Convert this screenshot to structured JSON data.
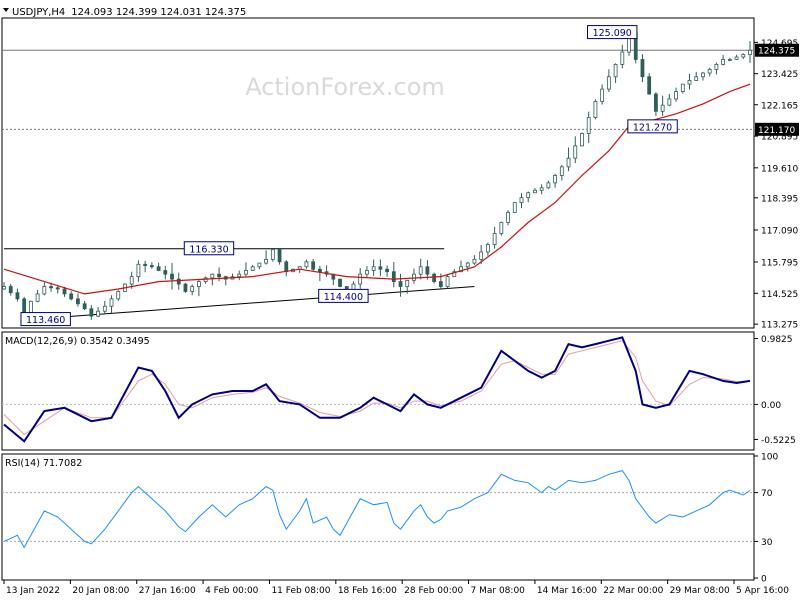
{
  "header": {
    "symbol": "USDJPY,H4",
    "ohlc": "124.093 124.399 124.031 124.375",
    "watermark": "ActionForex.com"
  },
  "colors": {
    "background": "#ffffff",
    "grid": "#c0c0c0",
    "frame": "#000000",
    "candle": "#2e5f5a",
    "ma": "#cc1111",
    "macd": "#000080",
    "signal": "#e0a0a0",
    "rsi": "#1e90ff",
    "watermark": "#d9d9d9",
    "label_border": "#000080"
  },
  "chart_data": [
    {
      "type": "candlestick",
      "name": "price",
      "ylim": [
        113.2,
        125.6
      ],
      "y_ticks": [
        "124.695",
        "123.425",
        "122.165",
        "120.895",
        "119.610",
        "118.395",
        "117.090",
        "115.795",
        "114.525",
        "113.275"
      ],
      "x_ticks": [
        "13 Jan 2022",
        "20 Jan 08:00",
        "27 Jan 16:00",
        "4 Feb 00:00",
        "11 Feb 08:00",
        "18 Feb 16:00",
        "28 Feb 00:00",
        "7 Mar 08:00",
        "14 Mar 16:00",
        "22 Mar 00:00",
        "29 Mar 08:00",
        "5 Apr 16:00"
      ],
      "close_path": [
        [
          0,
          114.8
        ],
        [
          2,
          114.3
        ],
        [
          3,
          113.7
        ],
        [
          4,
          114.2
        ],
        [
          6,
          114.8
        ],
        [
          8,
          114.7
        ],
        [
          10,
          114.3
        ],
        [
          12,
          113.9
        ],
        [
          13,
          113.6
        ],
        [
          15,
          114.0
        ],
        [
          17,
          114.6
        ],
        [
          19,
          115.2
        ],
        [
          20,
          115.7
        ],
        [
          22,
          115.6
        ],
        [
          24,
          115.3
        ],
        [
          26,
          114.9
        ],
        [
          27,
          114.6
        ],
        [
          29,
          115.0
        ],
        [
          31,
          115.3
        ],
        [
          33,
          115.1
        ],
        [
          35,
          115.3
        ],
        [
          37,
          115.6
        ],
        [
          39,
          115.9
        ],
        [
          40,
          116.3
        ],
        [
          41,
          115.8
        ],
        [
          42,
          115.4
        ],
        [
          44,
          115.6
        ],
        [
          45,
          115.8
        ],
        [
          46,
          115.5
        ],
        [
          48,
          115.3
        ],
        [
          49,
          115.1
        ],
        [
          50,
          114.8
        ],
        [
          51,
          114.6
        ],
        [
          52,
          114.9
        ],
        [
          53,
          115.3
        ],
        [
          55,
          115.6
        ],
        [
          57,
          115.4
        ],
        [
          58,
          115.0
        ],
        [
          59,
          114.8
        ],
        [
          61,
          115.3
        ],
        [
          62,
          115.6
        ],
        [
          63,
          115.3
        ],
        [
          64,
          115.0
        ],
        [
          65,
          114.8
        ],
        [
          66,
          115.2
        ],
        [
          68,
          115.6
        ],
        [
          70,
          115.9
        ],
        [
          72,
          116.5
        ],
        [
          74,
          117.4
        ],
        [
          76,
          118.2
        ],
        [
          78,
          118.6
        ],
        [
          80,
          118.8
        ],
        [
          81,
          119.0
        ],
        [
          82,
          119.3
        ],
        [
          84,
          120.0
        ],
        [
          86,
          121.0
        ],
        [
          88,
          122.3
        ],
        [
          90,
          123.3
        ],
        [
          92,
          124.3
        ],
        [
          93,
          125.09
        ],
        [
          94,
          124.0
        ],
        [
          96,
          122.6
        ],
        [
          97,
          121.9
        ],
        [
          99,
          122.4
        ],
        [
          101,
          123.0
        ],
        [
          103,
          123.3
        ],
        [
          105,
          123.6
        ],
        [
          107,
          124.0
        ],
        [
          108,
          124.0
        ],
        [
          110,
          124.2
        ],
        [
          111,
          124.375
        ]
      ],
      "series": [
        {
          "name": "MA",
          "values": [
            [
              0,
              115.5
            ],
            [
              6,
              115.0
            ],
            [
              12,
              114.5
            ],
            [
              17,
              114.7
            ],
            [
              23,
              115.0
            ],
            [
              30,
              115.1
            ],
            [
              37,
              115.2
            ],
            [
              44,
              115.5
            ],
            [
              51,
              115.2
            ],
            [
              58,
              115.1
            ],
            [
              65,
              115.2
            ],
            [
              70,
              115.6
            ],
            [
              74,
              116.4
            ],
            [
              78,
              117.4
            ],
            [
              82,
              118.2
            ],
            [
              86,
              119.3
            ],
            [
              90,
              120.3
            ],
            [
              93,
              121.3
            ],
            [
              96,
              121.5
            ],
            [
              100,
              121.8
            ],
            [
              104,
              122.2
            ],
            [
              108,
              122.7
            ],
            [
              111,
              123.0
            ]
          ]
        }
      ],
      "horizontal_lines": [
        {
          "value": 124.375,
          "label": "124.375",
          "style": "solid"
        },
        {
          "value": 121.17,
          "label": "121.170",
          "style": "dotted"
        }
      ],
      "annotations": [
        {
          "text": "125.090",
          "x": 90.5,
          "y": 125.09
        },
        {
          "text": "116.330",
          "x": 30.5,
          "y": 116.33
        },
        {
          "text": "114.400",
          "x": 50.5,
          "y": 114.4
        },
        {
          "text": "113.460",
          "x": 6.2,
          "y": 113.46
        },
        {
          "text": "121.270",
          "x": 96.5,
          "y": 121.27
        }
      ],
      "trendlines": [
        {
          "from": [
            0,
            116.33
          ],
          "to": [
            65.5,
            116.33
          ]
        },
        {
          "from": [
            5.5,
            113.5
          ],
          "to": [
            70,
            114.8
          ]
        }
      ]
    },
    {
      "type": "line",
      "name": "macd",
      "title": "MACD(12,26,9) 0.3542 0.3495",
      "ylim": [
        -0.65,
        1.05
      ],
      "y_ticks": [
        {
          "label": "0.9825",
          "value": 0.9825
        },
        {
          "label": "0.00",
          "value": 0.0
        },
        {
          "label": "-0.5225",
          "value": -0.5225
        }
      ],
      "series": [
        {
          "name": "MACD",
          "values": [
            [
              0,
              -0.3
            ],
            [
              3,
              -0.55
            ],
            [
              6,
              -0.1
            ],
            [
              9,
              -0.05
            ],
            [
              13,
              -0.25
            ],
            [
              16,
              -0.2
            ],
            [
              20,
              0.55
            ],
            [
              22,
              0.5
            ],
            [
              24,
              0.2
            ],
            [
              26,
              -0.2
            ],
            [
              28,
              0.0
            ],
            [
              31,
              0.15
            ],
            [
              34,
              0.2
            ],
            [
              37,
              0.2
            ],
            [
              39,
              0.3
            ],
            [
              41,
              0.05
            ],
            [
              44,
              0.0
            ],
            [
              47,
              -0.2
            ],
            [
              50,
              -0.2
            ],
            [
              53,
              -0.05
            ],
            [
              55,
              0.1
            ],
            [
              57,
              0.0
            ],
            [
              59,
              -0.1
            ],
            [
              61,
              0.15
            ],
            [
              63,
              0.0
            ],
            [
              65,
              -0.05
            ],
            [
              68,
              0.1
            ],
            [
              71,
              0.25
            ],
            [
              74,
              0.8
            ],
            [
              76,
              0.65
            ],
            [
              78,
              0.5
            ],
            [
              80,
              0.4
            ],
            [
              82,
              0.5
            ],
            [
              84,
              0.9
            ],
            [
              86,
              0.85
            ],
            [
              88,
              0.9
            ],
            [
              90,
              0.95
            ],
            [
              92,
              1.0
            ],
            [
              94,
              0.5
            ],
            [
              95,
              0.0
            ],
            [
              97,
              -0.05
            ],
            [
              99,
              0.0
            ],
            [
              102,
              0.5
            ],
            [
              104,
              0.45
            ],
            [
              107,
              0.35
            ],
            [
              109,
              0.32
            ],
            [
              111,
              0.35
            ]
          ]
        },
        {
          "name": "Signal",
          "values": [
            [
              0,
              -0.15
            ],
            [
              3,
              -0.45
            ],
            [
              6,
              -0.25
            ],
            [
              9,
              -0.05
            ],
            [
              13,
              -0.2
            ],
            [
              16,
              -0.2
            ],
            [
              20,
              0.35
            ],
            [
              22,
              0.45
            ],
            [
              24,
              0.3
            ],
            [
              26,
              0.0
            ],
            [
              28,
              -0.05
            ],
            [
              31,
              0.1
            ],
            [
              34,
              0.15
            ],
            [
              37,
              0.18
            ],
            [
              39,
              0.25
            ],
            [
              41,
              0.12
            ],
            [
              44,
              0.02
            ],
            [
              47,
              -0.12
            ],
            [
              50,
              -0.18
            ],
            [
              53,
              -0.1
            ],
            [
              55,
              0.02
            ],
            [
              57,
              0.02
            ],
            [
              59,
              -0.05
            ],
            [
              61,
              0.05
            ],
            [
              63,
              0.05
            ],
            [
              65,
              -0.02
            ],
            [
              68,
              0.05
            ],
            [
              71,
              0.2
            ],
            [
              74,
              0.6
            ],
            [
              76,
              0.65
            ],
            [
              78,
              0.55
            ],
            [
              80,
              0.45
            ],
            [
              82,
              0.45
            ],
            [
              84,
              0.75
            ],
            [
              86,
              0.8
            ],
            [
              88,
              0.85
            ],
            [
              90,
              0.9
            ],
            [
              92,
              0.95
            ],
            [
              94,
              0.7
            ],
            [
              95,
              0.35
            ],
            [
              97,
              0.05
            ],
            [
              99,
              -0.02
            ],
            [
              102,
              0.3
            ],
            [
              104,
              0.4
            ],
            [
              107,
              0.38
            ],
            [
              109,
              0.34
            ],
            [
              111,
              0.35
            ]
          ]
        }
      ]
    },
    {
      "type": "line",
      "name": "rsi",
      "title": "RSI(14) 71.7082",
      "ylim": [
        0,
        100
      ],
      "y_ticks": [
        {
          "label": "100",
          "value": 100
        },
        {
          "label": "70",
          "value": 70
        },
        {
          "label": "30",
          "value": 30
        },
        {
          "label": "0",
          "value": 0
        }
      ],
      "levels": [
        70,
        30
      ],
      "series": [
        {
          "name": "RSI",
          "values": [
            [
              0,
              30
            ],
            [
              2,
              35
            ],
            [
              3,
              25
            ],
            [
              4,
              35
            ],
            [
              6,
              55
            ],
            [
              8,
              50
            ],
            [
              10,
              40
            ],
            [
              12,
              30
            ],
            [
              13,
              28
            ],
            [
              15,
              40
            ],
            [
              17,
              55
            ],
            [
              19,
              70
            ],
            [
              20,
              75
            ],
            [
              22,
              65
            ],
            [
              24,
              55
            ],
            [
              26,
              42
            ],
            [
              27,
              38
            ],
            [
              29,
              50
            ],
            [
              31,
              60
            ],
            [
              33,
              50
            ],
            [
              35,
              60
            ],
            [
              37,
              65
            ],
            [
              39,
              75
            ],
            [
              40,
              72
            ],
            [
              41,
              52
            ],
            [
              42,
              40
            ],
            [
              44,
              55
            ],
            [
              45,
              65
            ],
            [
              46,
              45
            ],
            [
              48,
              50
            ],
            [
              49,
              40
            ],
            [
              50,
              35
            ],
            [
              51,
              45
            ],
            [
              52,
              55
            ],
            [
              53,
              65
            ],
            [
              55,
              60
            ],
            [
              57,
              62
            ],
            [
              58,
              45
            ],
            [
              59,
              40
            ],
            [
              61,
              55
            ],
            [
              62,
              60
            ],
            [
              63,
              50
            ],
            [
              64,
              45
            ],
            [
              65,
              48
            ],
            [
              66,
              55
            ],
            [
              68,
              58
            ],
            [
              70,
              65
            ],
            [
              72,
              70
            ],
            [
              74,
              85
            ],
            [
              76,
              80
            ],
            [
              78,
              78
            ],
            [
              80,
              70
            ],
            [
              81,
              75
            ],
            [
              82,
              72
            ],
            [
              84,
              80
            ],
            [
              86,
              78
            ],
            [
              88,
              80
            ],
            [
              90,
              85
            ],
            [
              92,
              88
            ],
            [
              93,
              80
            ],
            [
              94,
              65
            ],
            [
              96,
              50
            ],
            [
              97,
              45
            ],
            [
              99,
              52
            ],
            [
              101,
              50
            ],
            [
              103,
              55
            ],
            [
              105,
              60
            ],
            [
              107,
              70
            ],
            [
              108,
              72
            ],
            [
              110,
              68
            ],
            [
              111,
              71.7
            ]
          ]
        }
      ]
    }
  ]
}
